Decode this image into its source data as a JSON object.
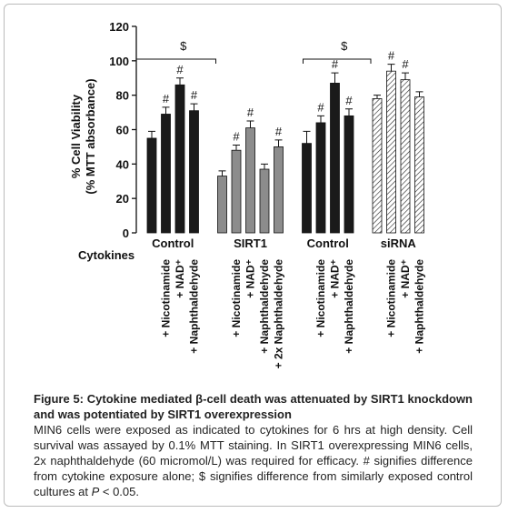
{
  "chart_data": {
    "type": "bar",
    "y_label": [
      "% Cell Viability",
      "(% MTT absorbance)"
    ],
    "ylim": [
      0,
      120
    ],
    "yticks": [
      0,
      20,
      40,
      60,
      80,
      100,
      120
    ],
    "row_label": "Cytokines",
    "groups": [
      {
        "name": "Control",
        "color": "#1a1a1a",
        "hatch": false,
        "bracket_label": "$",
        "values": [
          55,
          69,
          86,
          71
        ],
        "errors": [
          4,
          4,
          4,
          4
        ],
        "marks": [
          null,
          "#",
          "#",
          "#"
        ],
        "treatments": [
          null,
          "+ Nicotinamide",
          "+ NAD⁺",
          "+ Naphthaldehyde"
        ]
      },
      {
        "name": "SIRT1",
        "color": "#8c8c8c",
        "hatch": false,
        "values": [
          33,
          48,
          61,
          37,
          50
        ],
        "errors": [
          3,
          3,
          4,
          3,
          4
        ],
        "marks": [
          null,
          "#",
          "#",
          null,
          "#"
        ],
        "treatments": [
          null,
          "+ Nicotinamide",
          "+ NAD⁺",
          "+ Naphthaldehyde",
          "+ 2x Naphthaldehyde"
        ]
      },
      {
        "name": "Control",
        "color": "#1a1a1a",
        "hatch": false,
        "bracket_label": "$",
        "values": [
          52,
          64,
          87,
          68
        ],
        "errors": [
          7,
          4,
          6,
          4
        ],
        "marks": [
          null,
          "#",
          "#",
          "#"
        ],
        "treatments": [
          null,
          "+ Nicotinamide",
          "+ NAD⁺",
          "+ Naphthaldehyde"
        ]
      },
      {
        "name": "siRNA",
        "color": "#ffffff",
        "hatch": true,
        "values": [
          78,
          94,
          89,
          79
        ],
        "errors": [
          2,
          4,
          4,
          3
        ],
        "marks": [
          null,
          "#",
          "#",
          null
        ],
        "treatments": [
          null,
          "+ Nicotinamide",
          "+ NAD⁺",
          "+ Naphthaldehyde"
        ]
      }
    ]
  },
  "caption": {
    "title": "Figure 5: Cytokine mediated β-cell death was attenuated by SIRT1 knockdown and was potentiated by SIRT1 overexpression",
    "body": "MIN6 cells were exposed as indicated to cytokines for 6 hrs at high density. Cell survival was assayed by 0.1% MTT staining. In SIRT1 overexpressing MIN6 cells, 2x naphthaldehyde (60 micromol/L) was required for efficacy. # signifies difference from cytokine exposure alone; $ signifies difference from similarly exposed control cultures at ",
    "italic": "P",
    "end": " < 0.05."
  }
}
